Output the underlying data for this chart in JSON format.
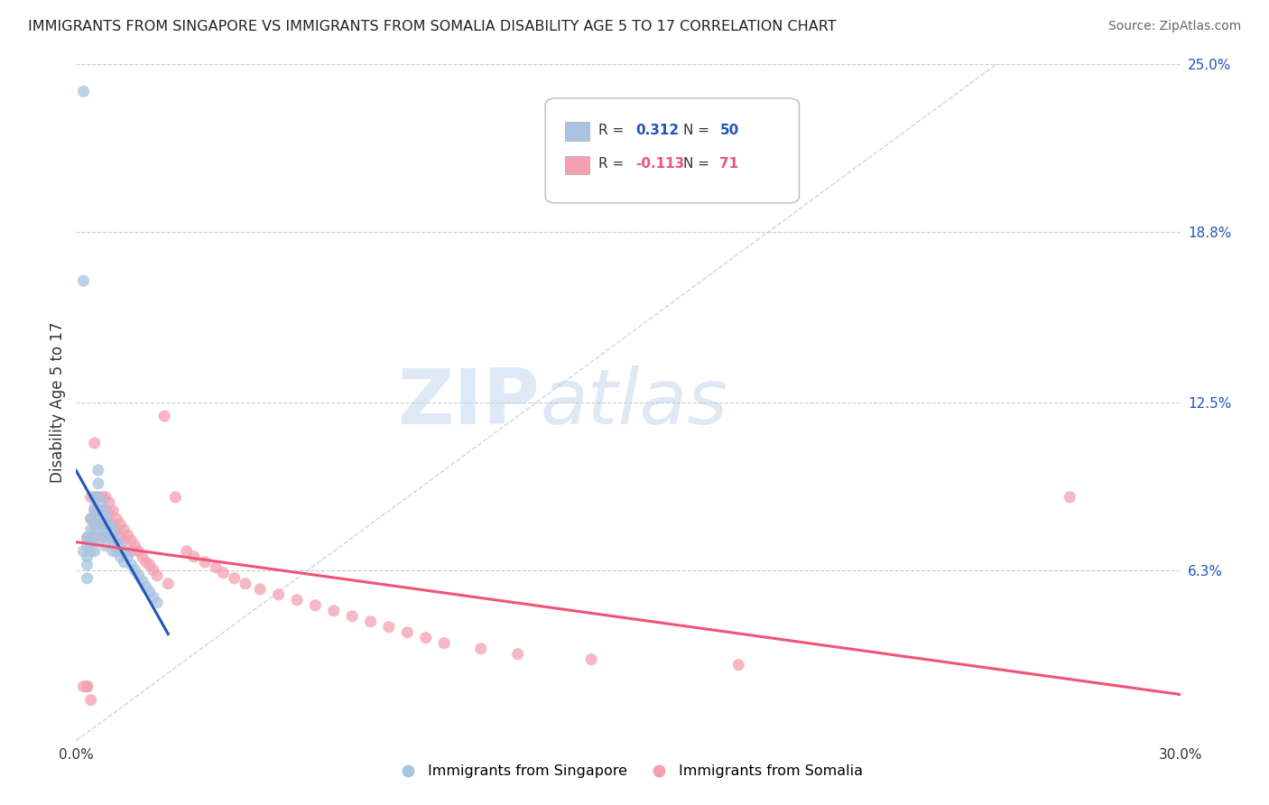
{
  "title": "IMMIGRANTS FROM SINGAPORE VS IMMIGRANTS FROM SOMALIA DISABILITY AGE 5 TO 17 CORRELATION CHART",
  "source": "Source: ZipAtlas.com",
  "ylabel": "Disability Age 5 to 17",
  "xlim": [
    0.0,
    0.3
  ],
  "ylim": [
    0.0,
    0.25
  ],
  "xtick_labels": [
    "0.0%",
    "30.0%"
  ],
  "ytick_labels_right": [
    "25.0%",
    "18.8%",
    "12.5%",
    "6.3%"
  ],
  "ytick_positions_right": [
    0.25,
    0.188,
    0.125,
    0.063
  ],
  "singapore_color": "#a8c4e0",
  "somalia_color": "#f4a0b0",
  "singapore_line_color": "#2255bb",
  "somalia_line_color": "#ee5577",
  "R_singapore": 0.312,
  "N_singapore": 50,
  "R_somalia": -0.113,
  "N_somalia": 71,
  "background_color": "#ffffff",
  "grid_color": "#cccccc",
  "watermark_zip": "ZIP",
  "watermark_atlas": "atlas",
  "singapore_scatter_x": [
    0.002,
    0.002,
    0.002,
    0.003,
    0.003,
    0.003,
    0.003,
    0.003,
    0.004,
    0.004,
    0.004,
    0.004,
    0.005,
    0.005,
    0.005,
    0.005,
    0.005,
    0.005,
    0.006,
    0.006,
    0.006,
    0.006,
    0.007,
    0.007,
    0.007,
    0.007,
    0.008,
    0.008,
    0.008,
    0.008,
    0.009,
    0.009,
    0.01,
    0.01,
    0.01,
    0.011,
    0.011,
    0.012,
    0.012,
    0.013,
    0.013,
    0.014,
    0.015,
    0.016,
    0.017,
    0.018,
    0.019,
    0.02,
    0.021,
    0.022
  ],
  "singapore_scatter_y": [
    0.24,
    0.17,
    0.07,
    0.075,
    0.072,
    0.068,
    0.065,
    0.06,
    0.082,
    0.078,
    0.074,
    0.07,
    0.09,
    0.086,
    0.082,
    0.078,
    0.074,
    0.07,
    0.1,
    0.095,
    0.09,
    0.085,
    0.088,
    0.084,
    0.08,
    0.076,
    0.084,
    0.08,
    0.076,
    0.072,
    0.08,
    0.076,
    0.078,
    0.074,
    0.07,
    0.074,
    0.07,
    0.072,
    0.068,
    0.07,
    0.066,
    0.068,
    0.065,
    0.063,
    0.061,
    0.059,
    0.057,
    0.055,
    0.053,
    0.051
  ],
  "somalia_scatter_x": [
    0.002,
    0.003,
    0.003,
    0.004,
    0.004,
    0.005,
    0.005,
    0.005,
    0.005,
    0.005,
    0.006,
    0.006,
    0.006,
    0.007,
    0.007,
    0.007,
    0.007,
    0.008,
    0.008,
    0.008,
    0.009,
    0.009,
    0.009,
    0.009,
    0.01,
    0.01,
    0.01,
    0.011,
    0.011,
    0.012,
    0.012,
    0.013,
    0.013,
    0.014,
    0.015,
    0.015,
    0.016,
    0.017,
    0.018,
    0.019,
    0.02,
    0.021,
    0.022,
    0.024,
    0.025,
    0.027,
    0.03,
    0.032,
    0.035,
    0.038,
    0.04,
    0.043,
    0.046,
    0.05,
    0.055,
    0.06,
    0.065,
    0.07,
    0.075,
    0.08,
    0.085,
    0.09,
    0.095,
    0.1,
    0.11,
    0.12,
    0.14,
    0.18,
    0.27,
    0.003,
    0.004
  ],
  "somalia_scatter_y": [
    0.02,
    0.075,
    0.02,
    0.09,
    0.082,
    0.11,
    0.09,
    0.085,
    0.08,
    0.075,
    0.09,
    0.085,
    0.08,
    0.09,
    0.085,
    0.08,
    0.075,
    0.09,
    0.085,
    0.08,
    0.088,
    0.084,
    0.08,
    0.076,
    0.085,
    0.08,
    0.075,
    0.082,
    0.078,
    0.08,
    0.075,
    0.078,
    0.074,
    0.076,
    0.074,
    0.07,
    0.072,
    0.07,
    0.068,
    0.066,
    0.065,
    0.063,
    0.061,
    0.12,
    0.058,
    0.09,
    0.07,
    0.068,
    0.066,
    0.064,
    0.062,
    0.06,
    0.058,
    0.056,
    0.054,
    0.052,
    0.05,
    0.048,
    0.046,
    0.044,
    0.042,
    0.04,
    0.038,
    0.036,
    0.034,
    0.032,
    0.03,
    0.028,
    0.09,
    0.02,
    0.015
  ]
}
